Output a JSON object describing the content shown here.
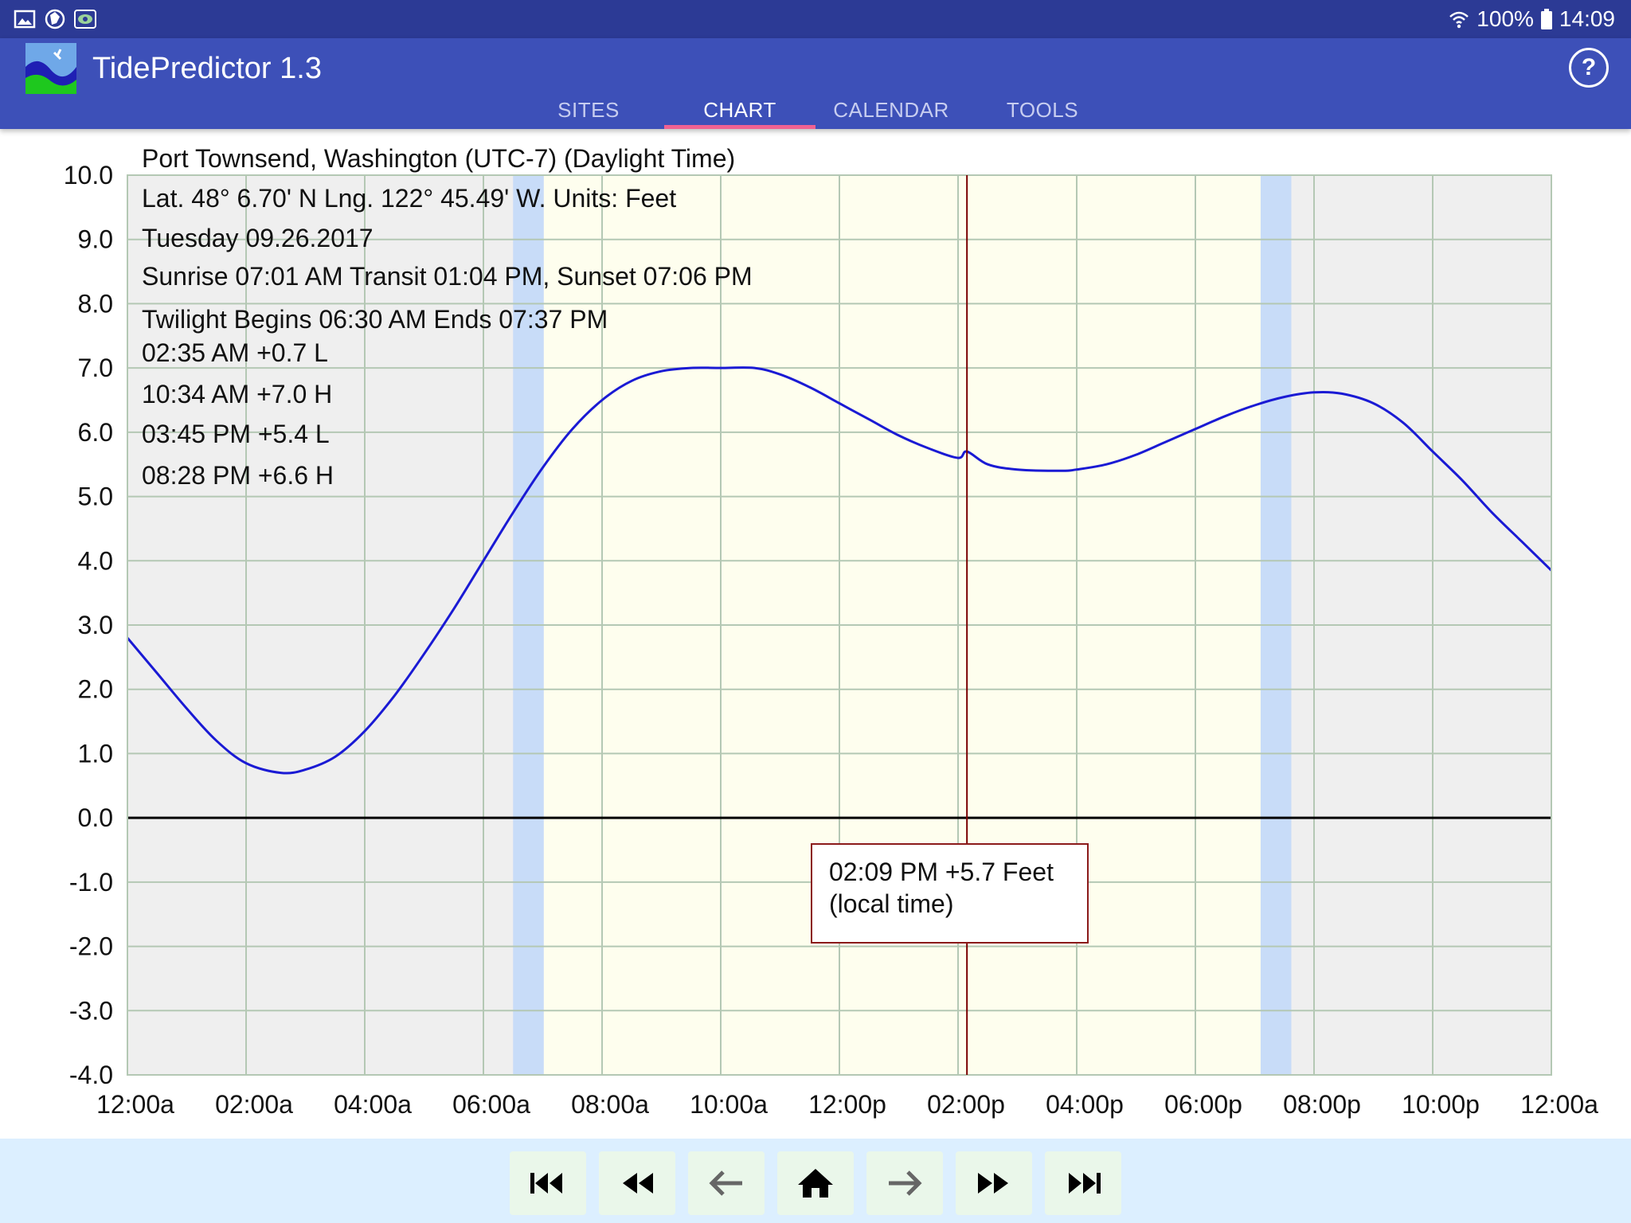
{
  "status_bar": {
    "icons_left": [
      "gallery-icon",
      "map-icon",
      "app-icon"
    ],
    "wifi_icon": "wifi-icon",
    "battery": "100%",
    "battery_icon": "battery-icon",
    "time": "14:09"
  },
  "app_bar": {
    "title": "TidePredictor 1.3",
    "logo_icon": "tide-logo-icon",
    "help_icon": "help-icon",
    "help_glyph": "?",
    "tabs": [
      {
        "label": "SITES",
        "active": false
      },
      {
        "label": "CHART",
        "active": true
      },
      {
        "label": "CALENDAR",
        "active": false
      },
      {
        "label": "TOOLS",
        "active": false
      }
    ]
  },
  "chart_data": {
    "type": "line",
    "title": "Port Townsend, Washington (UTC-7) (Daylight Time)",
    "info_lines": [
      "Port Townsend, Washington (UTC-7) (Daylight Time)",
      "Lat. 48° 6.70' N Lng. 122° 45.49' W. Units: Feet",
      "Tuesday 09.26.2017",
      "Sunrise 07:01 AM  Transit 01:04 PM, Sunset 07:06 PM",
      "Twilight Begins 06:30 AM  Ends 07:37 PM"
    ],
    "tide_events": [
      {
        "label": "02:35 AM  +0.7 L",
        "time_h": 2.583,
        "height": 0.7,
        "type": "L"
      },
      {
        "label": "10:34 AM  +7.0 H",
        "time_h": 10.567,
        "height": 7.0,
        "type": "H"
      },
      {
        "label": "03:45 PM  +5.4 L",
        "time_h": 15.75,
        "height": 5.4,
        "type": "L"
      },
      {
        "label": "08:28 PM  +6.6 H",
        "time_h": 20.467,
        "height": 6.6,
        "type": "H"
      }
    ],
    "xlim": [
      0,
      24
    ],
    "ylim": [
      -4.0,
      10.0
    ],
    "x_tick_values": [
      0,
      2,
      4,
      6,
      8,
      10,
      12,
      14,
      16,
      18,
      20,
      22,
      24
    ],
    "x_tick_labels": [
      "12:00a",
      "02:00a",
      "04:00a",
      "06:00a",
      "08:00a",
      "10:00a",
      "12:00p",
      "02:00p",
      "04:00p",
      "06:00p",
      "08:00p",
      "10:00p",
      "12:00a"
    ],
    "y_tick_values": [
      10,
      9,
      8,
      7,
      6,
      5,
      4,
      3,
      2,
      1,
      0,
      -1,
      -2,
      -3,
      -4
    ],
    "y_tick_labels": [
      "10.0",
      "9.0",
      "8.0",
      "7.0",
      "6.0",
      "5.0",
      "4.0",
      "3.0",
      "2.0",
      "1.0",
      "0.0",
      "-1.0",
      "-2.0",
      "-3.0",
      "-4.0"
    ],
    "grid": true,
    "series": [
      {
        "x": [
          0,
          0.5,
          1,
          1.5,
          2,
          2.583,
          3,
          3.5,
          4,
          4.5,
          5,
          5.5,
          6,
          6.5,
          7,
          7.5,
          8,
          8.5,
          9,
          9.5,
          10,
          10.567,
          11,
          11.5,
          12,
          12.5,
          13,
          13.5,
          14,
          14.15,
          14.5,
          15,
          15.75,
          16,
          16.5,
          17,
          17.5,
          18,
          18.5,
          19,
          19.5,
          20,
          20.467,
          21,
          21.5,
          22,
          22.5,
          23,
          23.5,
          24
        ],
        "y": [
          2.8,
          2.25,
          1.7,
          1.2,
          0.85,
          0.7,
          0.75,
          0.95,
          1.35,
          1.9,
          2.55,
          3.25,
          4.0,
          4.75,
          5.45,
          6.05,
          6.5,
          6.8,
          6.95,
          7.0,
          7.0,
          7.0,
          6.9,
          6.7,
          6.45,
          6.2,
          5.95,
          5.75,
          5.6,
          5.7,
          5.5,
          5.42,
          5.4,
          5.42,
          5.5,
          5.65,
          5.85,
          6.05,
          6.25,
          6.42,
          6.55,
          6.62,
          6.6,
          6.45,
          6.15,
          5.7,
          5.25,
          4.75,
          4.3,
          3.85
        ],
        "color": "#1a1ad4"
      }
    ],
    "day_period": {
      "start_h": 7.017,
      "end_h": 19.1,
      "color": "#fefeee"
    },
    "night_color": "#efefef",
    "twilight_periods": [
      {
        "start_h": 6.5,
        "end_h": 7.017
      },
      {
        "start_h": 19.1,
        "end_h": 19.617
      }
    ],
    "twilight_color": "#c8dcf8",
    "grid_color": "#b4c8b4",
    "cursor": {
      "time_h": 14.15,
      "color": "#7a0000"
    },
    "tooltip": {
      "line1": "02:09 PM +5.7 Feet",
      "line2": "(local time)"
    }
  },
  "footer": {
    "buttons": [
      {
        "name": "first-button",
        "icon": "skip-first-icon"
      },
      {
        "name": "rewind-button",
        "icon": "rewind-icon"
      },
      {
        "name": "previous-day-button",
        "icon": "arrow-left-icon"
      },
      {
        "name": "today-button",
        "icon": "home-icon"
      },
      {
        "name": "next-day-button",
        "icon": "arrow-right-icon"
      },
      {
        "name": "fast-forward-button",
        "icon": "fast-forward-icon"
      },
      {
        "name": "last-button",
        "icon": "skip-last-icon"
      }
    ]
  }
}
